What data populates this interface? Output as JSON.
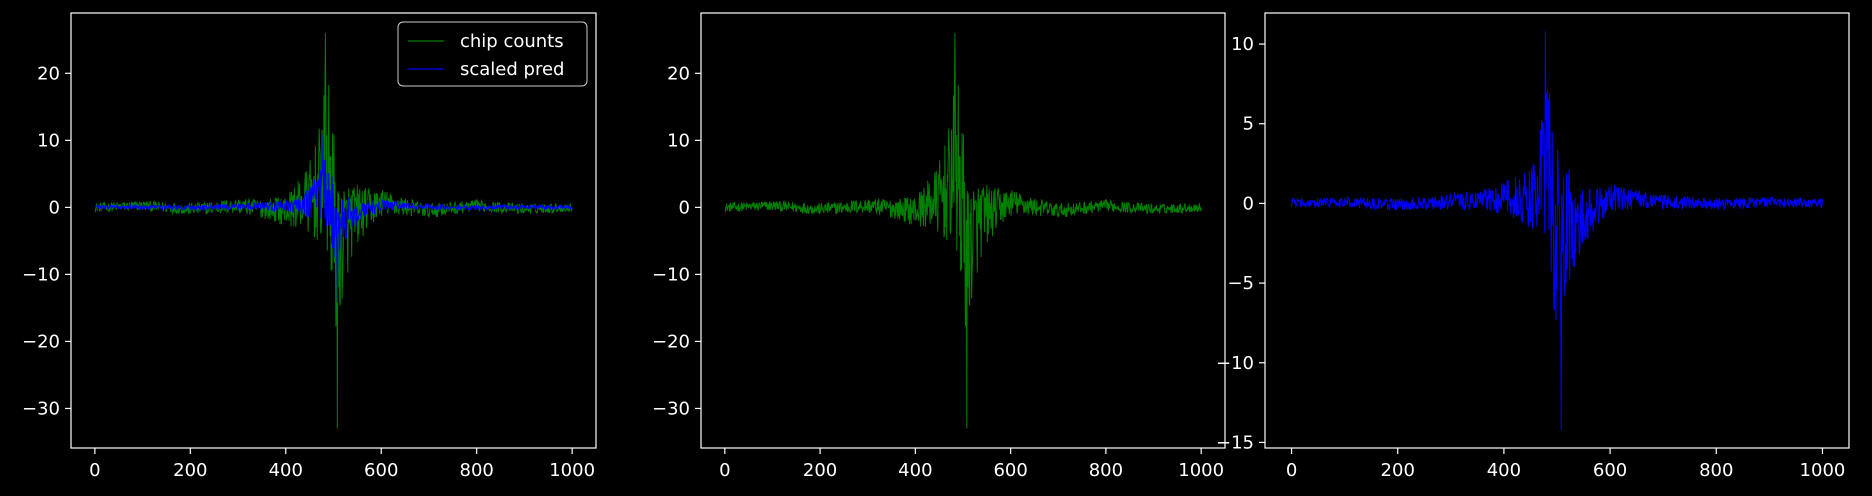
{
  "chart_data": [
    {
      "type": "line",
      "title": "",
      "xlabel": "",
      "ylabel": "",
      "xlim": [
        -50,
        1050
      ],
      "ylim": [
        -35.9,
        29.0
      ],
      "xticks": [
        0,
        200,
        400,
        600,
        800,
        1000
      ],
      "xtick_labels": [
        "0",
        "200",
        "400",
        "600",
        "800",
        "1000"
      ],
      "yticks": [
        -30,
        -20,
        -10,
        0,
        10,
        20
      ],
      "ytick_labels": [
        "−30",
        "−20",
        "−10",
        "0",
        "10",
        "20"
      ],
      "grid": false,
      "legend_position": "top-right",
      "series": [
        {
          "name": "chip counts",
          "color": "#008000",
          "x_range": [
            0,
            1000
          ],
          "peak_index": 483,
          "peak_value": 26,
          "trough_index": 508,
          "trough_value": -33,
          "sample_points": [
            [
              0,
              0
            ],
            [
              100,
              1
            ],
            [
              200,
              -1
            ],
            [
              300,
              1
            ],
            [
              400,
              -2
            ],
            [
              450,
              5
            ],
            [
              470,
              12
            ],
            [
              483,
              26
            ],
            [
              495,
              10
            ],
            [
              508,
              -33
            ],
            [
              520,
              -17
            ],
            [
              540,
              -6
            ],
            [
              600,
              3
            ],
            [
              700,
              -2
            ],
            [
              800,
              1
            ],
            [
              900,
              -1
            ],
            [
              1000,
              0
            ]
          ]
        },
        {
          "name": "scaled pred",
          "color": "#0000ff",
          "x_range": [
            0,
            1000
          ],
          "peak_index": 478,
          "peak_value": 10.8,
          "trough_index": 508,
          "trough_value": -14.2,
          "sample_points": [
            [
              0,
              0.2
            ],
            [
              100,
              0.3
            ],
            [
              200,
              -0.3
            ],
            [
              300,
              0.4
            ],
            [
              400,
              1.2
            ],
            [
              450,
              2.5
            ],
            [
              478,
              10.8
            ],
            [
              490,
              5
            ],
            [
              508,
              -14.2
            ],
            [
              520,
              -6
            ],
            [
              560,
              -2
            ],
            [
              600,
              1.5
            ],
            [
              700,
              0.4
            ],
            [
              800,
              -0.2
            ],
            [
              900,
              0.3
            ],
            [
              1000,
              0.1
            ]
          ]
        }
      ]
    },
    {
      "type": "line",
      "title": "",
      "xlabel": "",
      "ylabel": "",
      "xlim": [
        -50,
        1050
      ],
      "ylim": [
        -35.9,
        29.0
      ],
      "xticks": [
        0,
        200,
        400,
        600,
        800,
        1000
      ],
      "xtick_labels": [
        "0",
        "200",
        "400",
        "600",
        "800",
        "1000"
      ],
      "yticks": [
        -30,
        -20,
        -10,
        0,
        10,
        20
      ],
      "ytick_labels": [
        "−30",
        "−20",
        "−10",
        "0",
        "10",
        "20"
      ],
      "grid": false,
      "series": [
        {
          "color": "#008000",
          "x_range": [
            0,
            1000
          ],
          "peak_index": 483,
          "peak_value": 26,
          "trough_index": 508,
          "trough_value": -33,
          "sample_points": [
            [
              0,
              0
            ],
            [
              100,
              1
            ],
            [
              200,
              -1
            ],
            [
              300,
              1
            ],
            [
              400,
              -2
            ],
            [
              450,
              5
            ],
            [
              470,
              12
            ],
            [
              483,
              26
            ],
            [
              495,
              10
            ],
            [
              508,
              -33
            ],
            [
              520,
              -17
            ],
            [
              540,
              -6
            ],
            [
              600,
              3
            ],
            [
              700,
              -2
            ],
            [
              800,
              1
            ],
            [
              900,
              -1
            ],
            [
              1000,
              0
            ]
          ]
        }
      ]
    },
    {
      "type": "line",
      "title": "",
      "xlabel": "",
      "ylabel": "",
      "xlim": [
        -50,
        1050
      ],
      "ylim": [
        -15.35,
        11.95
      ],
      "xticks": [
        0,
        200,
        400,
        600,
        800,
        1000
      ],
      "xtick_labels": [
        "0",
        "200",
        "400",
        "600",
        "800",
        "1000"
      ],
      "yticks": [
        -15,
        -10,
        -5,
        0,
        5,
        10
      ],
      "ytick_labels": [
        "−15",
        "−10",
        "−5",
        "0",
        "5",
        "10"
      ],
      "grid": false,
      "series": [
        {
          "color": "#0000ff",
          "x_range": [
            0,
            1000
          ],
          "peak_index": 478,
          "peak_value": 10.8,
          "trough_index": 508,
          "trough_value": -14.2,
          "sample_points": [
            [
              0,
              0.2
            ],
            [
              100,
              0.3
            ],
            [
              200,
              -0.3
            ],
            [
              300,
              0.4
            ],
            [
              400,
              1.2
            ],
            [
              450,
              2.5
            ],
            [
              478,
              10.8
            ],
            [
              490,
              5
            ],
            [
              508,
              -14.2
            ],
            [
              520,
              -6
            ],
            [
              560,
              -2
            ],
            [
              600,
              1.5
            ],
            [
              700,
              0.4
            ],
            [
              800,
              -0.2
            ],
            [
              900,
              0.3
            ],
            [
              1000,
              0.1
            ]
          ]
        }
      ]
    }
  ]
}
